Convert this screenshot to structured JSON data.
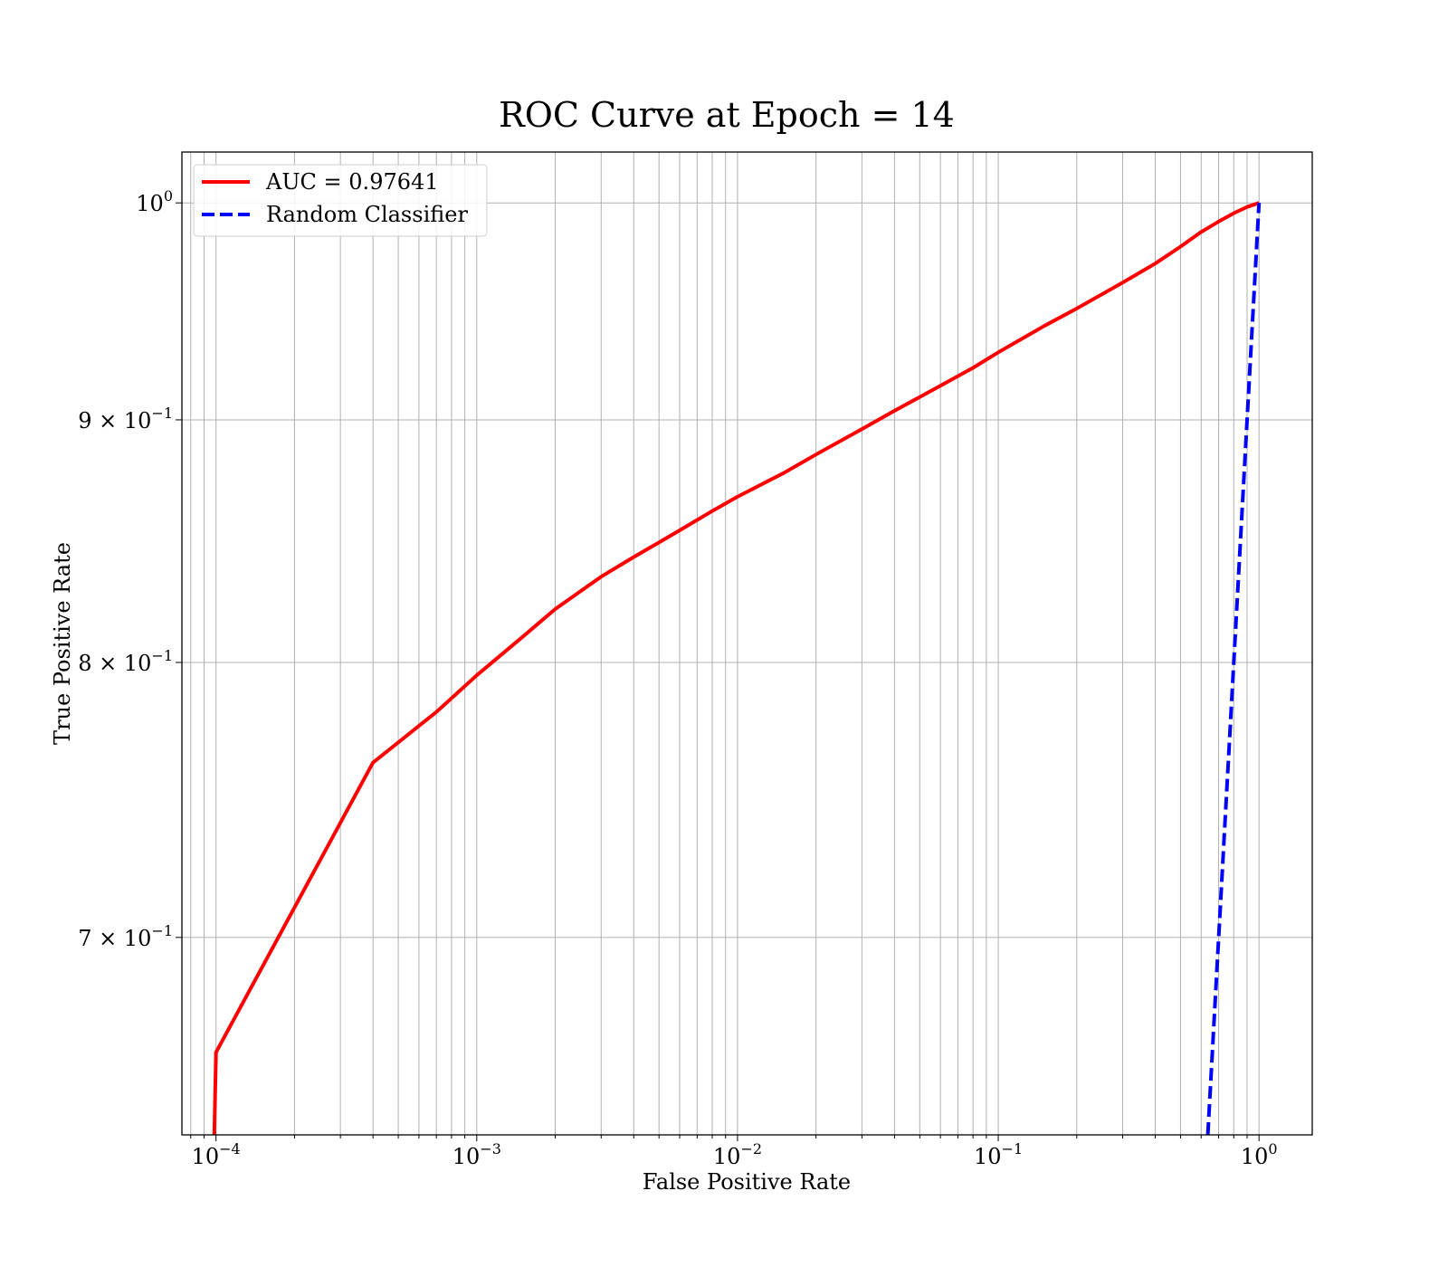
{
  "chart_data": {
    "type": "line",
    "title": "ROC Curve at Epoch = 14",
    "xlabel": "False Positive Rate",
    "ylabel": "True Positive Rate",
    "xscale": "log",
    "yscale": "log",
    "xlim": [
      7.4e-05,
      1.6
    ],
    "ylim": [
      0.636,
      1.025
    ],
    "grid": "both-major-and-minor",
    "legend_position": "top-left",
    "x_ticks": [
      {
        "value": 0.0001,
        "base": "10",
        "exp": "−4"
      },
      {
        "value": 0.001,
        "base": "10",
        "exp": "−3"
      },
      {
        "value": 0.01,
        "base": "10",
        "exp": "−2"
      },
      {
        "value": 0.1,
        "base": "10",
        "exp": "−1"
      },
      {
        "value": 1,
        "base": "10",
        "exp": "0"
      }
    ],
    "y_ticks": [
      {
        "value": 0.7,
        "base": "7 × 10",
        "exp": "−1"
      },
      {
        "value": 0.8,
        "base": "8 × 10",
        "exp": "−1"
      },
      {
        "value": 0.9,
        "base": "9 × 10",
        "exp": "−1"
      },
      {
        "value": 1.0,
        "base": "10",
        "exp": "0"
      }
    ],
    "series": [
      {
        "name": "AUC = 0.97641",
        "color": "#ff0000",
        "dash": "solid",
        "x": [
          9.85e-05,
          0.0001,
          0.0004,
          0.0007,
          0.001,
          0.0015,
          0.002,
          0.003,
          0.004,
          0.005,
          0.006,
          0.008,
          0.01,
          0.015,
          0.02,
          0.03,
          0.04,
          0.06,
          0.08,
          0.1,
          0.15,
          0.2,
          0.3,
          0.4,
          0.5,
          0.6,
          0.7,
          0.8,
          0.9,
          1.0
        ],
        "y": [
          0.636,
          0.662,
          0.762,
          0.781,
          0.795,
          0.81,
          0.821,
          0.834,
          0.842,
          0.848,
          0.853,
          0.861,
          0.867,
          0.877,
          0.885,
          0.896,
          0.904,
          0.915,
          0.923,
          0.93,
          0.942,
          0.95,
          0.962,
          0.971,
          0.979,
          0.986,
          0.991,
          0.995,
          0.998,
          1.0
        ]
      },
      {
        "name": "Random Classifier",
        "color": "#0000ff",
        "dash": "dashed",
        "x": [
          0.636,
          0.7,
          0.8,
          0.9,
          1.0
        ],
        "y": [
          0.636,
          0.7,
          0.8,
          0.9,
          1.0
        ]
      }
    ]
  }
}
